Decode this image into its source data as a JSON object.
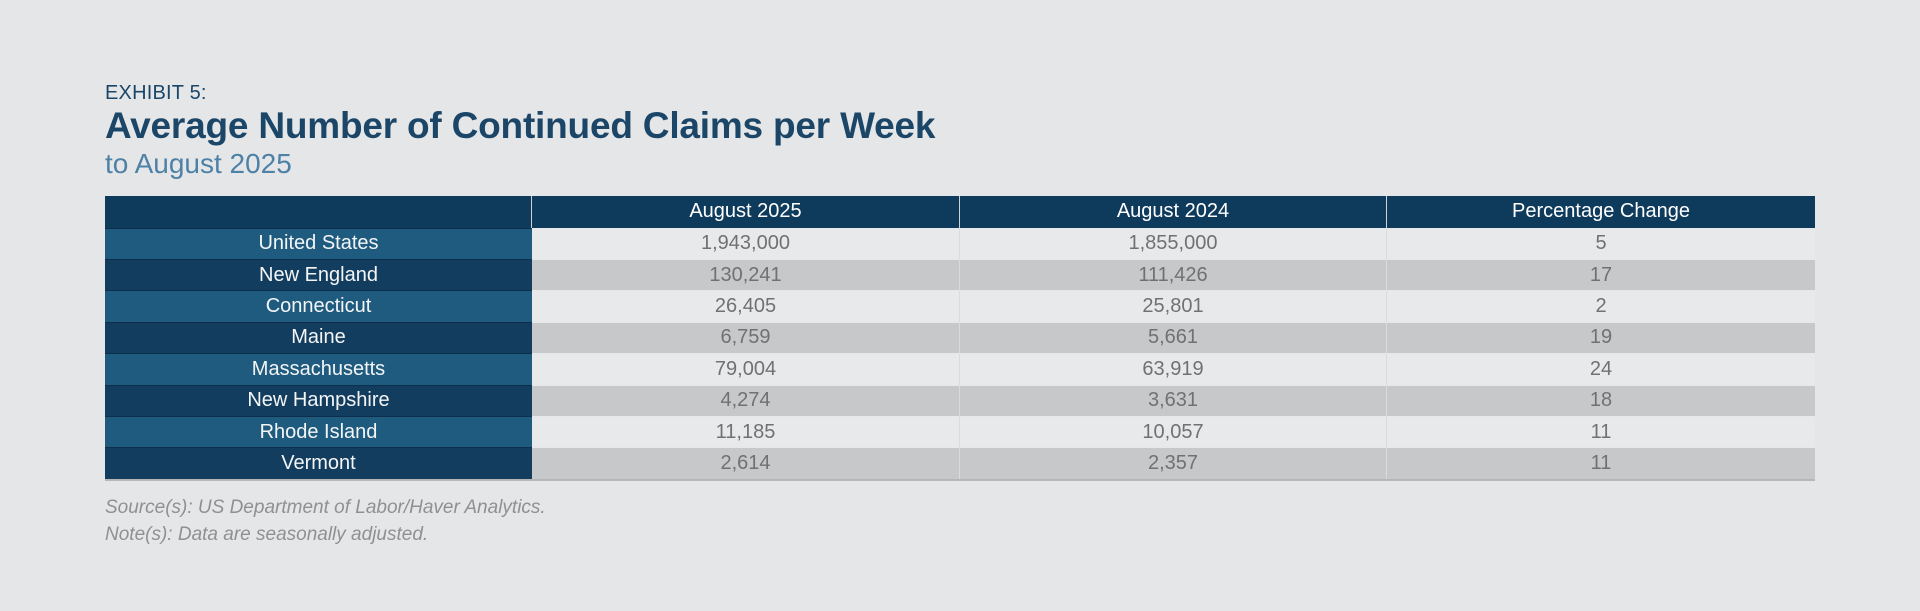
{
  "header": {
    "exhibit_label": "EXHIBIT 5:",
    "title": "Average Number of Continued Claims per Week",
    "subtitle": "to August 2025"
  },
  "table": {
    "columns": {
      "region": "",
      "aug_2025": "August 2025",
      "aug_2024": "August 2024",
      "pct_change": "Percentage Change"
    },
    "rows": [
      {
        "label": "United States",
        "aug_2025": "1,943,000",
        "aug_2024": "1,855,000",
        "pct_change": "5"
      },
      {
        "label": "New England",
        "aug_2025": "130,241",
        "aug_2024": "111,426",
        "pct_change": "17"
      },
      {
        "label": "Connecticut",
        "aug_2025": "26,405",
        "aug_2024": "25,801",
        "pct_change": "2"
      },
      {
        "label": "Maine",
        "aug_2025": "6,759",
        "aug_2024": "5,661",
        "pct_change": "19"
      },
      {
        "label": "Massachusetts",
        "aug_2025": "79,004",
        "aug_2024": "63,919",
        "pct_change": "24"
      },
      {
        "label": "New Hampshire",
        "aug_2025": "4,274",
        "aug_2024": "3,631",
        "pct_change": "18"
      },
      {
        "label": "Rhode Island",
        "aug_2025": "11,185",
        "aug_2024": "10,057",
        "pct_change": "11"
      },
      {
        "label": "Vermont",
        "aug_2025": "2,614",
        "aug_2024": "2,357",
        "pct_change": "11"
      }
    ]
  },
  "footnotes": {
    "source": "Source(s): US Department of Labor/Haver Analytics.",
    "note": "Note(s): Data are seasonally adjusted."
  },
  "colors": {
    "page_background": "#e5e6e8",
    "title_navy": "#1b4668",
    "subtitle_blue": "#4d81a6",
    "header_row_navy": "#0e3a5c",
    "label_cell_light_blue": "#1f5b7e",
    "label_cell_dark_blue": "#133d5f",
    "data_row_light": "#e8e9eb",
    "data_row_dark": "#c7c8ca",
    "value_text_gray": "#6f7173",
    "footnote_gray": "#8e9092"
  }
}
